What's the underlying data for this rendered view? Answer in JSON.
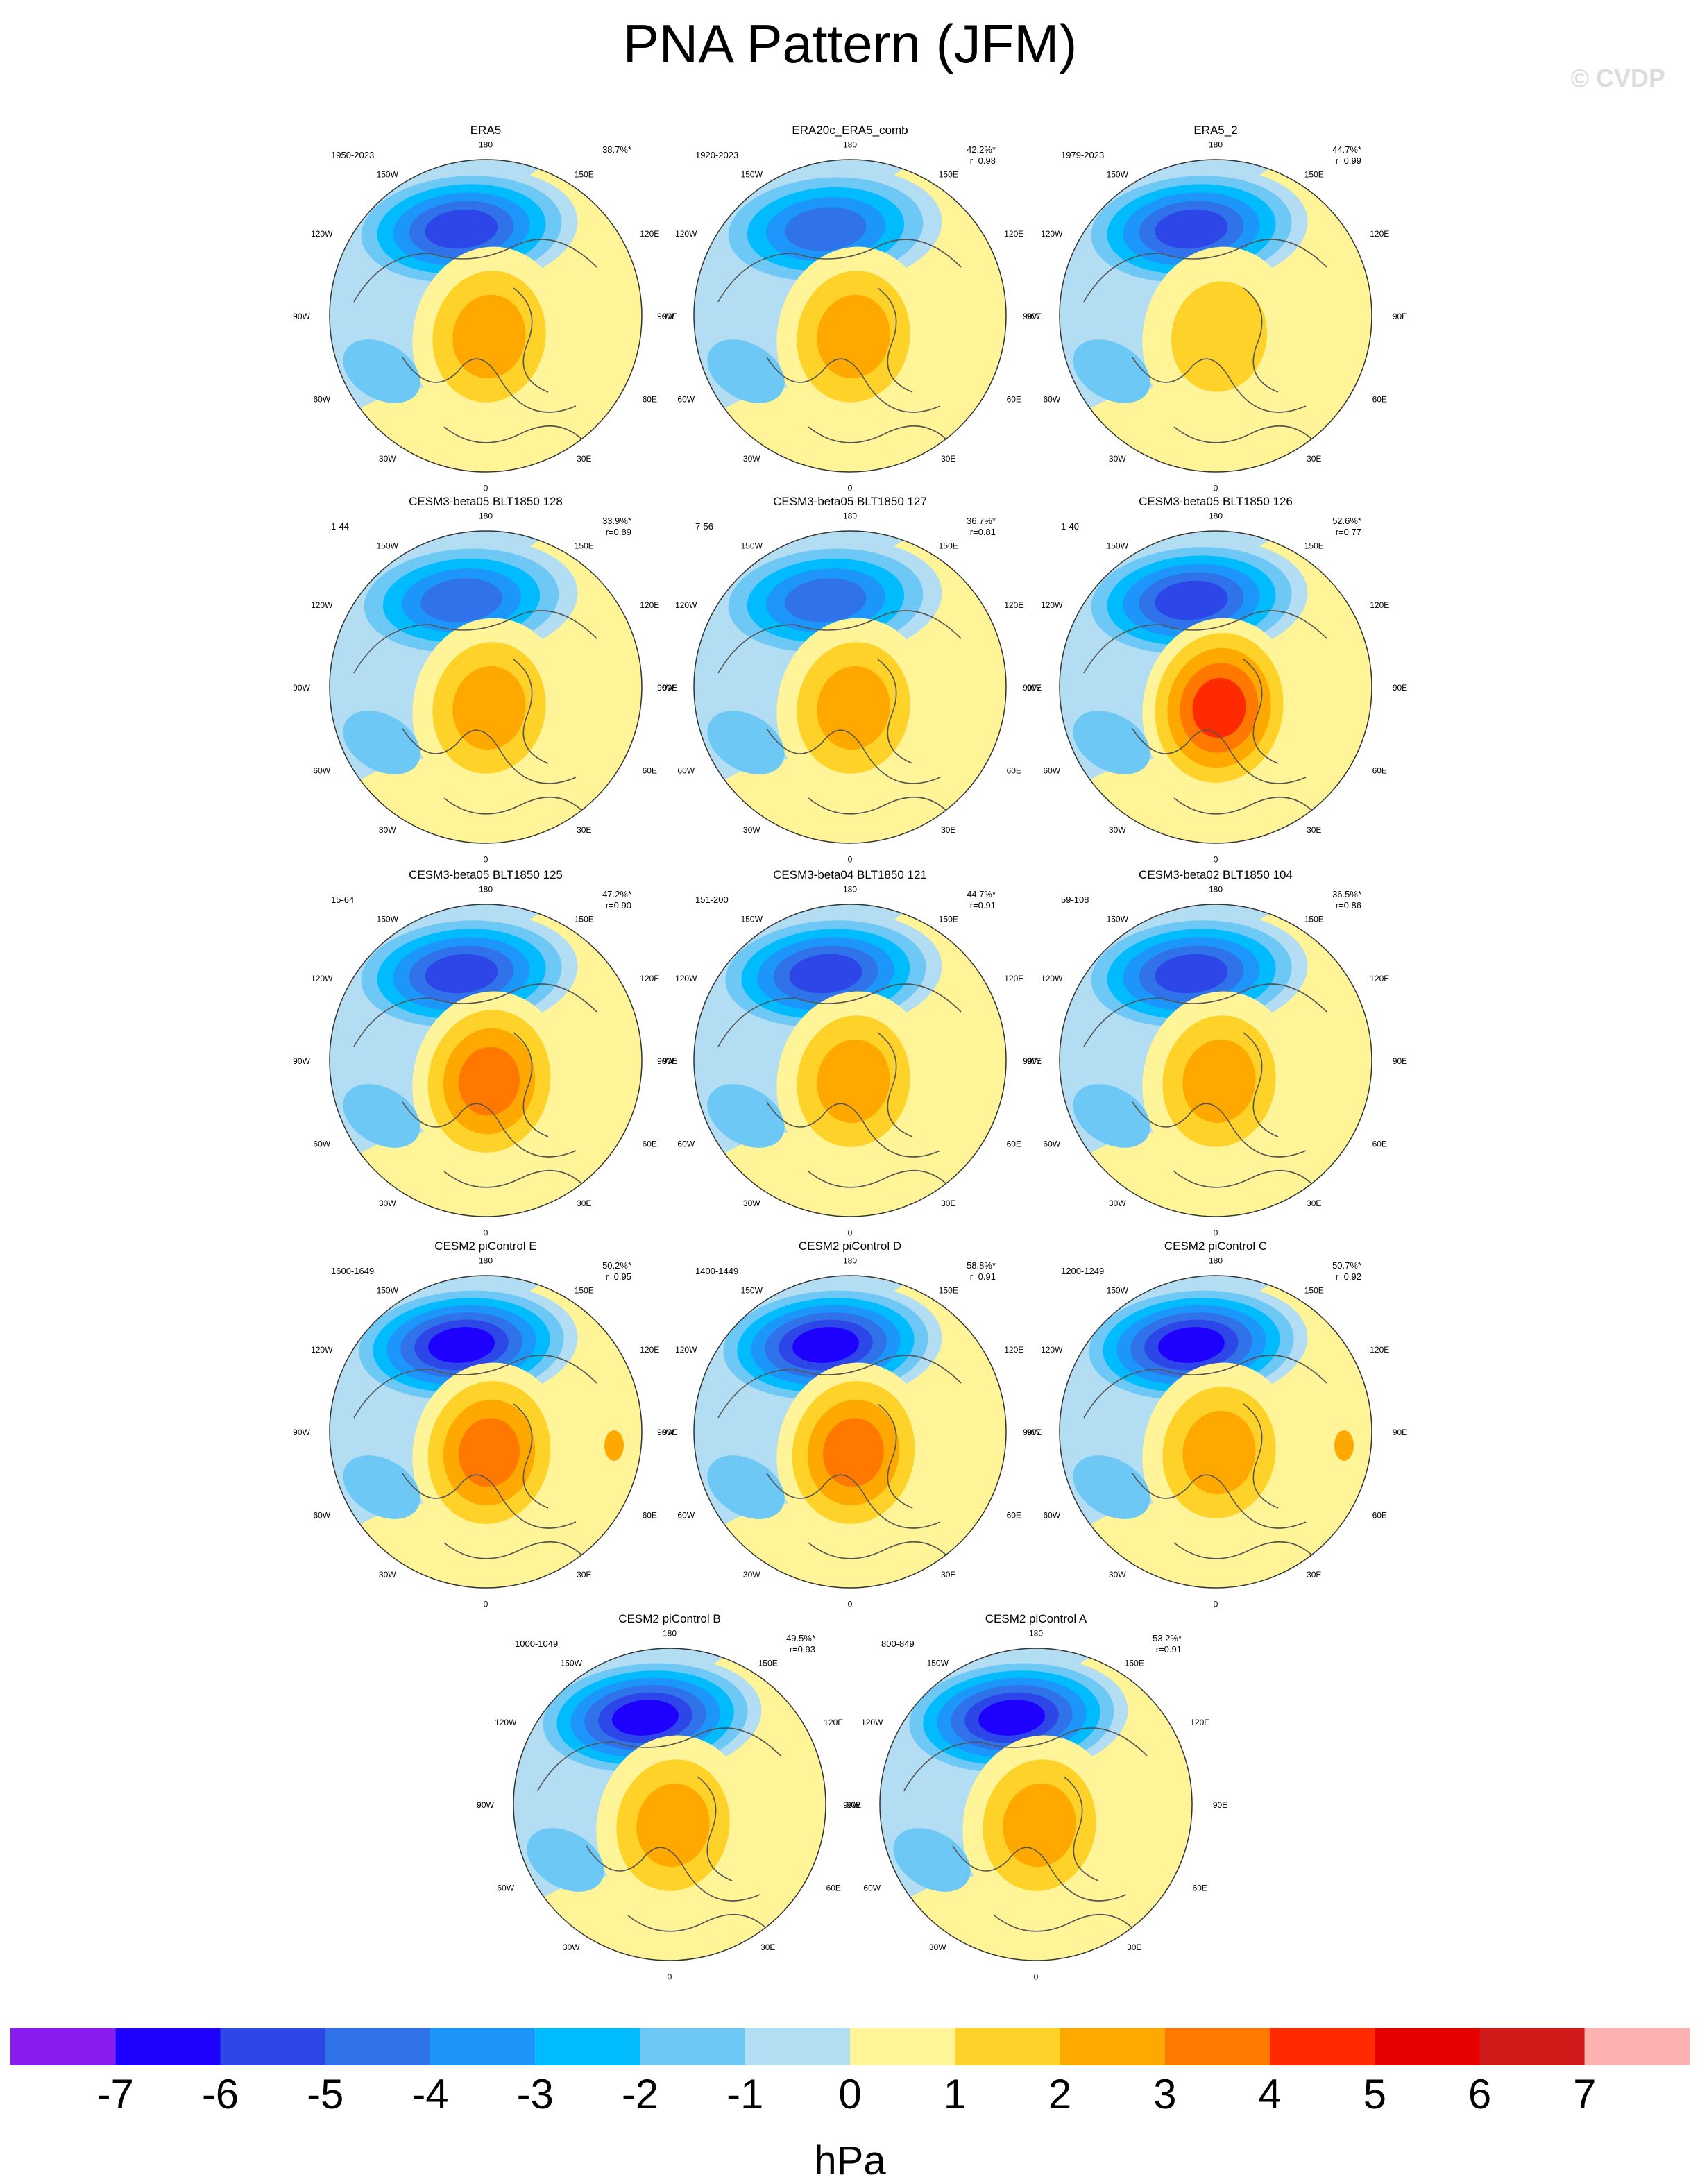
{
  "title": "PNA Pattern (JFM)",
  "copyright": "© CVDP",
  "lon_labels": [
    "180",
    "150E",
    "120E",
    "90E",
    "60E",
    "30E",
    "0",
    "30W",
    "60W",
    "90W",
    "120W",
    "150W"
  ],
  "panels": [
    {
      "name": "ERA5",
      "period": "1950-2023",
      "pct": "38.7%*",
      "r": ""
    },
    {
      "name": "ERA20c_ERA5_comb",
      "period": "1920-2023",
      "pct": "42.2%*",
      "r": "r=0.98"
    },
    {
      "name": "ERA5_2",
      "period": "1979-2023",
      "pct": "44.7%*",
      "r": "r=0.99"
    },
    {
      "name": "CESM3-beta05 BLT1850 128",
      "period": "1-44",
      "pct": "33.9%*",
      "r": "r=0.89"
    },
    {
      "name": "CESM3-beta05 BLT1850 127",
      "period": "7-56",
      "pct": "36.7%*",
      "r": "r=0.81"
    },
    {
      "name": "CESM3-beta05 BLT1850 126",
      "period": "1-40",
      "pct": "52.6%*",
      "r": "r=0.77"
    },
    {
      "name": "CESM3-beta05 BLT1850 125",
      "period": "15-64",
      "pct": "47.2%*",
      "r": "r=0.90"
    },
    {
      "name": "CESM3-beta04 BLT1850 121",
      "period": "151-200",
      "pct": "44.7%*",
      "r": "r=0.91"
    },
    {
      "name": "CESM3-beta02 BLT1850 104",
      "period": "59-108",
      "pct": "36.5%*",
      "r": "r=0.86"
    },
    {
      "name": "CESM2 piControl E",
      "period": "1600-1649",
      "pct": "50.2%*",
      "r": "r=0.95"
    },
    {
      "name": "CESM2 piControl D",
      "period": "1400-1449",
      "pct": "58.8%*",
      "r": "r=0.91"
    },
    {
      "name": "CESM2 piControl C",
      "period": "1200-1249",
      "pct": "50.7%*",
      "r": "r=0.92"
    },
    {
      "name": "CESM2 piControl B",
      "period": "1000-1049",
      "pct": "49.5%*",
      "r": "r=0.93"
    },
    {
      "name": "CESM2 piControl A",
      "period": "800-849",
      "pct": "53.2%*",
      "r": "r=0.91"
    }
  ],
  "colorbar": {
    "unit": "hPa",
    "colors": [
      "#8a1cf0",
      "#1e00ff",
      "#2c46e8",
      "#2f72ea",
      "#1c96fa",
      "#00bcff",
      "#6ec8f5",
      "#b2ddf2",
      "#fff598",
      "#ffd22a",
      "#ffa800",
      "#ff7800",
      "#ff2a00",
      "#e60000",
      "#d01a1a",
      "#ffb0b0"
    ],
    "labels": [
      "-7",
      "-6",
      "-5",
      "-4",
      "-3",
      "-2",
      "-1",
      "0",
      "1",
      "2",
      "3",
      "4",
      "5",
      "6",
      "7"
    ]
  }
}
